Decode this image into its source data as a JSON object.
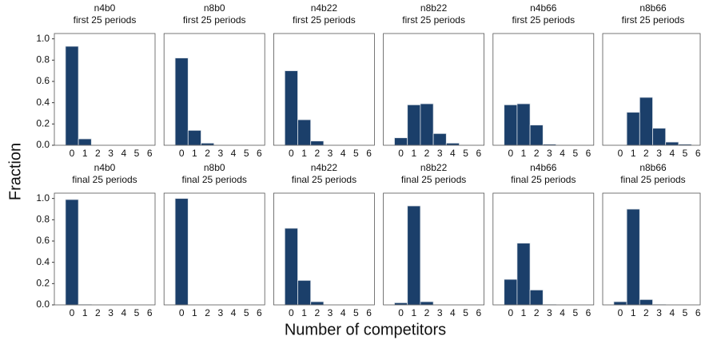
{
  "y_label": "Fraction",
  "x_label": "Number of competitors",
  "chart_data": [
    {
      "type": "bar",
      "title": "n4b0",
      "subtitle": "first 25 periods",
      "categories": [
        "0",
        "1",
        "2",
        "3",
        "4",
        "5",
        "6"
      ],
      "values": [
        0.93,
        0.06,
        0,
        0,
        0,
        0,
        0
      ],
      "color": "#1b3f6a",
      "ylim": [
        0,
        1.05
      ],
      "yticks": [
        {
          "value": 0,
          "label": "0.0"
        },
        0.2,
        0.4,
        0.6,
        0.8,
        {
          "value": 1,
          "label": "1.0"
        }
      ]
    },
    {
      "type": "bar",
      "title": "n8b0",
      "subtitle": "first 25 periods",
      "categories": [
        "0",
        "1",
        "2",
        "3",
        "4",
        "5",
        "6"
      ],
      "values": [
        0.82,
        0.14,
        0.02,
        0,
        0,
        0,
        0
      ],
      "color": "#1b3f6a",
      "ylim": [
        0,
        1.05
      ]
    },
    {
      "type": "bar",
      "title": "n4b22",
      "subtitle": "first 25 periods",
      "categories": [
        "0",
        "1",
        "2",
        "3",
        "4",
        "5",
        "6"
      ],
      "values": [
        0.7,
        0.24,
        0.04,
        0,
        0,
        0,
        0
      ],
      "color": "#1b3f6a",
      "ylim": [
        0,
        1.05
      ]
    },
    {
      "type": "bar",
      "title": "n8b22",
      "subtitle": "first 25 periods",
      "categories": [
        "0",
        "1",
        "2",
        "3",
        "4",
        "5",
        "6"
      ],
      "values": [
        0.07,
        0.38,
        0.39,
        0.11,
        0.02,
        0,
        0
      ],
      "color": "#1b3f6a",
      "ylim": [
        0,
        1.05
      ]
    },
    {
      "type": "bar",
      "title": "n4b66",
      "subtitle": "first 25 periods",
      "categories": [
        "0",
        "1",
        "2",
        "3",
        "4",
        "5",
        "6"
      ],
      "values": [
        0.38,
        0.39,
        0.19,
        0.01,
        0,
        0,
        0
      ],
      "color": "#1b3f6a",
      "ylim": [
        0,
        1.05
      ]
    },
    {
      "type": "bar",
      "title": "n8b66",
      "subtitle": "first 25 periods",
      "categories": [
        "0",
        "1",
        "2",
        "3",
        "4",
        "5",
        "6"
      ],
      "values": [
        0,
        0.31,
        0.45,
        0.16,
        0.03,
        0.01,
        0
      ],
      "color": "#1b3f6a",
      "ylim": [
        0,
        1.05
      ]
    },
    {
      "type": "bar",
      "title": "n4b0",
      "subtitle": "final 25 periods",
      "categories": [
        "0",
        "1",
        "2",
        "3",
        "4",
        "5",
        "6"
      ],
      "values": [
        0.99,
        0.005,
        0,
        0,
        0,
        0,
        0
      ],
      "color": "#1b3f6a",
      "ylim": [
        0,
        1.05
      ],
      "yticks": [
        {
          "value": 0,
          "label": "0.0"
        },
        0.2,
        0.4,
        0.6,
        0.8,
        {
          "value": 1,
          "label": "1.0"
        }
      ]
    },
    {
      "type": "bar",
      "title": "n8b0",
      "subtitle": "final 25 periods",
      "categories": [
        "0",
        "1",
        "2",
        "3",
        "4",
        "5",
        "6"
      ],
      "values": [
        1,
        0,
        0,
        0,
        0,
        0,
        0
      ],
      "color": "#1b3f6a",
      "ylim": [
        0,
        1.05
      ]
    },
    {
      "type": "bar",
      "title": "n4b22",
      "subtitle": "final 25 periods",
      "categories": [
        "0",
        "1",
        "2",
        "3",
        "4",
        "5",
        "6"
      ],
      "values": [
        0.72,
        0.23,
        0.03,
        0,
        0,
        0,
        0
      ],
      "color": "#1b3f6a",
      "ylim": [
        0,
        1.05
      ]
    },
    {
      "type": "bar",
      "title": "n8b22",
      "subtitle": "final 25 periods",
      "categories": [
        "0",
        "1",
        "2",
        "3",
        "4",
        "5",
        "6"
      ],
      "values": [
        0.02,
        0.93,
        0.03,
        0,
        0,
        0,
        0
      ],
      "color": "#1b3f6a",
      "ylim": [
        0,
        1.05
      ]
    },
    {
      "type": "bar",
      "title": "n4b66",
      "subtitle": "final 25 periods",
      "categories": [
        "0",
        "1",
        "2",
        "3",
        "4",
        "5",
        "6"
      ],
      "values": [
        0.24,
        0.58,
        0.14,
        0.005,
        0,
        0,
        0
      ],
      "color": "#1b3f6a",
      "ylim": [
        0,
        1.05
      ]
    },
    {
      "type": "bar",
      "title": "n8b66",
      "subtitle": "final 25 periods",
      "categories": [
        "0",
        "1",
        "2",
        "3",
        "4",
        "5",
        "6"
      ],
      "values": [
        0.03,
        0.9,
        0.05,
        0.005,
        0,
        0,
        0
      ],
      "color": "#1b3f6a",
      "ylim": [
        0,
        1.05
      ]
    }
  ]
}
